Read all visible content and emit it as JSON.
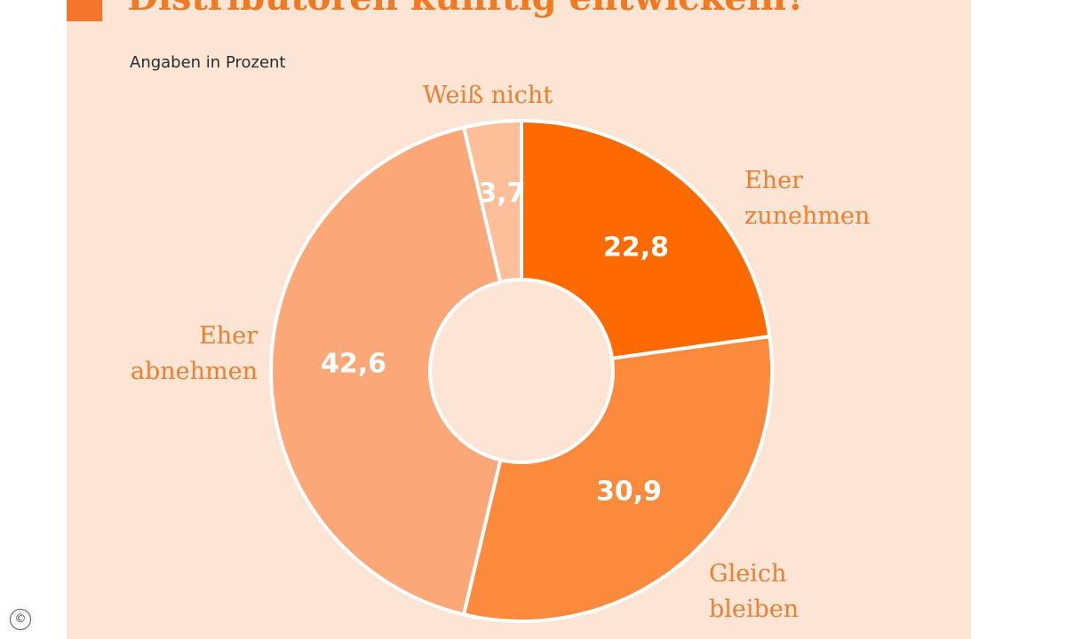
{
  "header": {
    "title": "Distributoren künftig entwickeln?",
    "subtitle": "Angaben in Prozent"
  },
  "footer": {
    "copyright": "©"
  },
  "chart_data": {
    "type": "pie",
    "variant": "donut",
    "title": "Distributoren künftig entwickeln?",
    "subtitle": "Angaben in Prozent",
    "categories": [
      "Eher zunehmen",
      "Gleich bleiben",
      "Eher abnehmen",
      "Weiß nicht"
    ],
    "label_lines": [
      [
        "Eher",
        "zunehmen"
      ],
      [
        "Gleich",
        "bleiben"
      ],
      [
        "Eher",
        "abnehmen"
      ],
      [
        "Weiß nicht"
      ]
    ],
    "values": [
      22.8,
      30.9,
      42.6,
      3.7
    ],
    "value_labels": [
      "22,8",
      "30,9",
      "42,6",
      "3,7"
    ],
    "colors": [
      "#ff6a00",
      "#fb8a3c",
      "#fca777",
      "#fdbf9a"
    ]
  }
}
